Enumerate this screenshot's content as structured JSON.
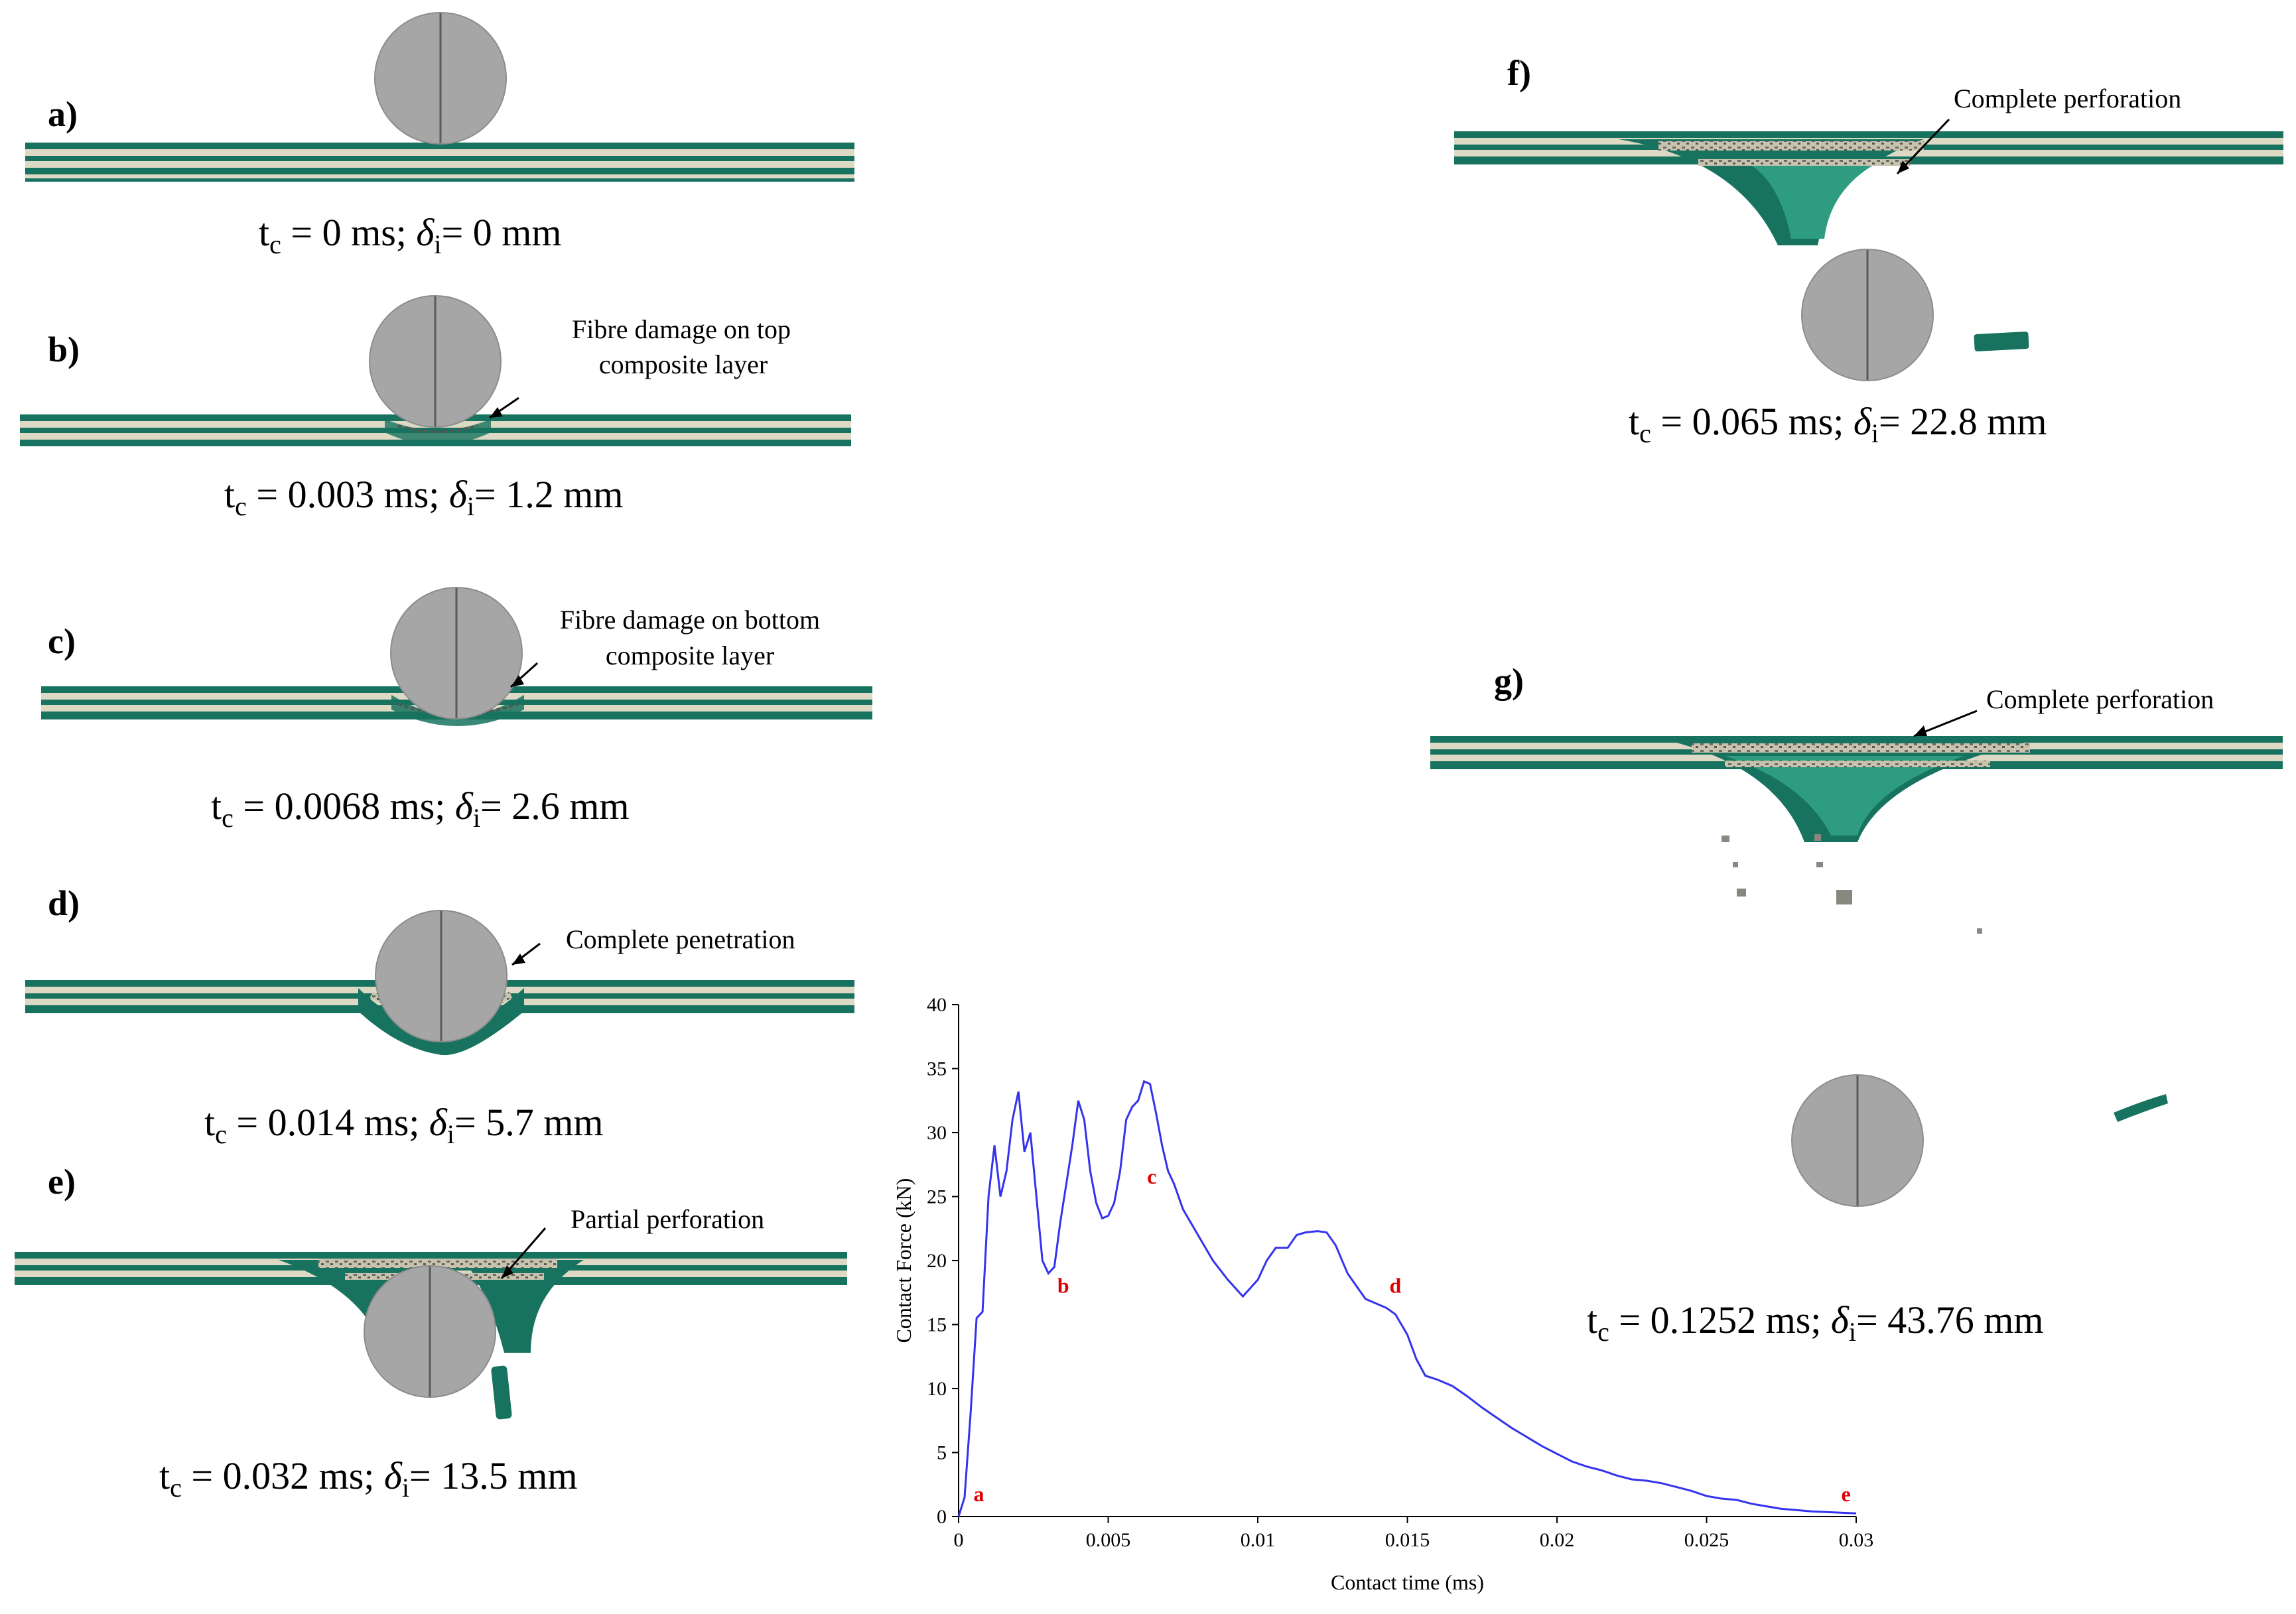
{
  "colors": {
    "laminate_green": "#17735f",
    "laminate_fill": "#2e9c80",
    "core": "#ddd9c4",
    "impactor": "#a6a6a6",
    "impactor_edge": "#7a7a7a",
    "curve": "#3333ee",
    "marker": "#e00000",
    "debris": "#888880"
  },
  "panels": [
    {
      "label": "a)",
      "time": "0",
      "disp": "0",
      "annotation": []
    },
    {
      "label": "b)",
      "time": "0.003",
      "disp": "1.2",
      "annotation": [
        "Fibre damage on top",
        "composite layer"
      ]
    },
    {
      "label": "c)",
      "time": "0.0068",
      "disp": "2.6",
      "annotation": [
        "Fibre damage on bottom",
        "composite layer"
      ]
    },
    {
      "label": "d)",
      "time": "0.014",
      "disp": "5.7",
      "annotation": [
        "Complete penetration"
      ]
    },
    {
      "label": "e)",
      "time": "0.032",
      "disp": "13.5",
      "annotation": [
        "Partial perforation"
      ]
    },
    {
      "label": "f)",
      "time": "0.065",
      "disp": "22.8",
      "annotation": [
        "Complete perforation"
      ]
    },
    {
      "label": "g)",
      "time": "0.1252",
      "disp": "43.76",
      "annotation": [
        "Complete perforation"
      ]
    }
  ],
  "caption_parts": {
    "t": "t",
    "c": "c",
    "eq": " = ",
    "ms": " ms; ",
    "delta": "δ",
    "i": "i",
    "eq2": "= ",
    "mm": " mm"
  },
  "chart_data": {
    "type": "line",
    "xlabel": "Contact time (ms)",
    "ylabel": "Contact Force (kN)",
    "xlim": [
      0,
      0.03
    ],
    "ylim": [
      0,
      40
    ],
    "xticks": [
      0,
      0.005,
      0.01,
      0.015,
      0.02,
      0.025,
      0.03
    ],
    "xtick_labels": [
      "0",
      "0.005",
      "0.01",
      "0.015",
      "0.02",
      "0.025",
      "0.03"
    ],
    "yticks": [
      0,
      5,
      10,
      15,
      20,
      25,
      30,
      35,
      40
    ],
    "ytick_labels": [
      "0",
      "5",
      "10",
      "15",
      "20",
      "25",
      "30",
      "35",
      "40"
    ],
    "series": [
      {
        "name": "Contact force",
        "x": [
          0,
          0.0002,
          0.0004,
          0.0006,
          0.0008,
          0.001,
          0.0012,
          0.0014,
          0.0016,
          0.0018,
          0.002,
          0.0022,
          0.0024,
          0.0026,
          0.0028,
          0.003,
          0.0032,
          0.0034,
          0.0036,
          0.0038,
          0.004,
          0.0042,
          0.0044,
          0.0046,
          0.0048,
          0.005,
          0.0052,
          0.0054,
          0.0056,
          0.0058,
          0.006,
          0.0062,
          0.0064,
          0.0066,
          0.0068,
          0.007,
          0.0072,
          0.0075,
          0.008,
          0.0085,
          0.009,
          0.0095,
          0.01,
          0.0103,
          0.0106,
          0.011,
          0.0113,
          0.0116,
          0.012,
          0.0123,
          0.0126,
          0.013,
          0.0133,
          0.0136,
          0.014,
          0.0143,
          0.0146,
          0.015,
          0.0153,
          0.0156,
          0.016,
          0.0165,
          0.017,
          0.0175,
          0.018,
          0.0185,
          0.019,
          0.0195,
          0.02,
          0.0205,
          0.021,
          0.0215,
          0.022,
          0.0225,
          0.023,
          0.0235,
          0.024,
          0.0245,
          0.025,
          0.0255,
          0.026,
          0.0265,
          0.027,
          0.0275,
          0.028,
          0.0285,
          0.029,
          0.0295,
          0.03
        ],
        "y": [
          0,
          1.5,
          8,
          15.5,
          16,
          25,
          29,
          25,
          27,
          31,
          33.2,
          28.5,
          30,
          25,
          20,
          19,
          19.5,
          23,
          26,
          29,
          32.5,
          31,
          27,
          24.5,
          23.3,
          23.5,
          24.5,
          27,
          31,
          32,
          32.5,
          34,
          33.8,
          31.5,
          29,
          27,
          26,
          24,
          22,
          20,
          18.5,
          17.2,
          18.5,
          20,
          21,
          21,
          22,
          22.2,
          22.3,
          22.2,
          21.2,
          19,
          18,
          17,
          16.6,
          16.3,
          15.8,
          14.2,
          12.3,
          11,
          10.7,
          10.2,
          9.4,
          8.5,
          7.7,
          6.9,
          6.2,
          5.5,
          4.9,
          4.3,
          3.9,
          3.6,
          3.2,
          2.9,
          2.8,
          2.6,
          2.3,
          2,
          1.6,
          1.4,
          1.3,
          1,
          0.8,
          0.6,
          0.5,
          0.4,
          0.35,
          0.3,
          0.25
        ]
      }
    ],
    "markers": [
      {
        "label": "a",
        "x": 0.0005,
        "y": 1.2
      },
      {
        "label": "b",
        "x": 0.0033,
        "y": 17.5
      },
      {
        "label": "c",
        "x": 0.0063,
        "y": 26
      },
      {
        "label": "d",
        "x": 0.0144,
        "y": 17.5
      },
      {
        "label": "e",
        "x": 0.0295,
        "y": 1.2
      }
    ]
  }
}
